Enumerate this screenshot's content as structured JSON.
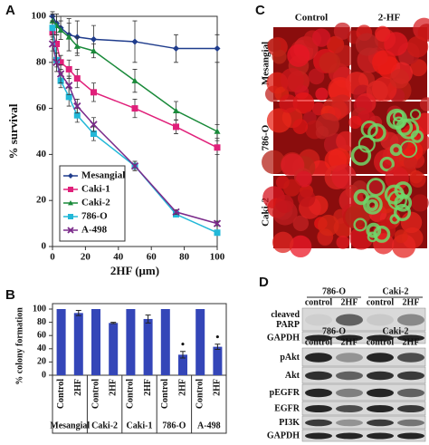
{
  "chart_data": [
    {
      "type": "line",
      "panel": "A",
      "ylabel": "% survival",
      "xlabel": "2HF (μm)",
      "x": [
        0,
        2.5,
        5,
        10,
        15,
        25,
        50,
        75,
        100
      ],
      "xlim": [
        0,
        100
      ],
      "xticks": [
        0,
        20,
        40,
        60,
        80,
        100
      ],
      "ylim": [
        0,
        100
      ],
      "yticks": [
        0,
        20,
        40,
        60,
        80,
        100
      ],
      "legend": "lower left",
      "series": [
        {
          "name": "Mesangial",
          "color": "#1f3c8c",
          "marker": "diamond",
          "values": [
            100,
            97,
            95,
            92,
            91,
            90,
            89,
            86,
            86
          ],
          "errors": [
            2,
            4,
            5,
            7,
            7,
            6,
            9,
            6,
            6
          ]
        },
        {
          "name": "Caki-1",
          "color": "#e0207a",
          "marker": "square",
          "values": [
            93,
            88,
            80,
            77,
            73,
            67,
            60,
            52,
            43
          ],
          "errors": [
            3,
            4,
            3,
            4,
            4,
            4,
            4,
            3,
            3
          ]
        },
        {
          "name": "Caki-2",
          "color": "#1a8a3a",
          "marker": "triangle",
          "values": [
            98,
            96,
            94,
            91,
            87,
            85,
            72,
            59,
            50
          ],
          "errors": [
            3,
            4,
            4,
            6,
            4,
            3,
            5,
            4,
            3
          ]
        },
        {
          "name": "786-O",
          "color": "#22b8d8",
          "marker": "square",
          "values": [
            95,
            81,
            72,
            65,
            57,
            49,
            35,
            14,
            6
          ],
          "errors": [
            3,
            3,
            3,
            4,
            3,
            3,
            2,
            1,
            1
          ]
        },
        {
          "name": "A-498",
          "color": "#7a2a8a",
          "marker": "x",
          "values": [
            88,
            80,
            75,
            70,
            61,
            53,
            35,
            15,
            10
          ],
          "errors": [
            3,
            4,
            4,
            4,
            3,
            3,
            2,
            1,
            1
          ]
        }
      ]
    },
    {
      "type": "bar",
      "panel": "B",
      "ylabel": "% colony formation",
      "categories": [
        "Control",
        "2HF",
        "Control",
        "2HF",
        "Control",
        "2HF",
        "Control",
        "2HF",
        "Control",
        "2HF"
      ],
      "groups": [
        "Mesangial",
        "Caki-2",
        "Caki-1",
        "786-O",
        "A-498"
      ],
      "values": [
        100,
        94,
        100,
        79,
        100,
        85,
        100,
        31,
        100,
        43
      ],
      "errors": [
        0,
        4,
        0,
        1,
        0,
        6,
        0,
        5,
        0,
        4
      ],
      "value_annotations": [
        null,
        null,
        null,
        null,
        null,
        null,
        null,
        "•",
        null,
        "•"
      ],
      "color": "#3446b8",
      "ylim": [
        0,
        100
      ],
      "yticks": [
        0,
        20,
        40,
        60,
        80,
        100
      ]
    }
  ],
  "panel_c": {
    "letter": "C",
    "columns": [
      "Control",
      "2-HF"
    ],
    "rows": [
      "Mesangial",
      "786-O",
      "Caki-2"
    ]
  },
  "panel_d": {
    "letter": "D",
    "blots": [
      {
        "cell_lines": [
          "786-O",
          "Caki-2"
        ],
        "lanes": [
          "control",
          "2HF",
          "control",
          "2HF"
        ],
        "rows": [
          [
            "cleaved",
            "PARP"
          ],
          [
            "GAPDH"
          ]
        ]
      },
      {
        "cell_lines": [
          "786-O",
          "Caki-2"
        ],
        "lanes": [
          "control",
          "2HF",
          "control",
          "2HF"
        ],
        "rows": [
          [
            "pAkt"
          ],
          [
            "Akt"
          ],
          [
            "pEGFR"
          ],
          [
            "EGFR"
          ],
          [
            "PI3K"
          ],
          [
            "GAPDH"
          ]
        ]
      }
    ]
  }
}
